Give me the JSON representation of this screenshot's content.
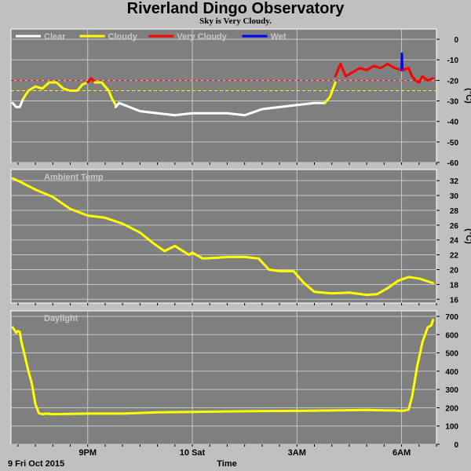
{
  "title": "Riverland Dingo Observatory",
  "subtitle": "Sky is Very Cloudy.",
  "footer": {
    "date_label": "9 Fri Oct 2015",
    "xlabel": "Time"
  },
  "x_ticks": [
    {
      "t": 21,
      "label": "9PM"
    },
    {
      "t": 24,
      "label": "10 Sat"
    },
    {
      "t": 27,
      "label": "3AM"
    },
    {
      "t": 30,
      "label": "6AM"
    }
  ],
  "chart_data": [
    {
      "type": "line",
      "name": "sky",
      "xlim": [
        18.8,
        31.0
      ],
      "ylim": [
        -60,
        5
      ],
      "yticks": [
        0,
        -10,
        -20,
        -30,
        -40,
        -50,
        -60
      ],
      "ylabel": "(°C)",
      "colors": {
        "Clear": "#ffffff",
        "Cloudy": "#ffff00",
        "Very Cloudy": "#ff0000",
        "Wet": "#0000ff"
      },
      "legend": [
        "Clear",
        "Cloudy",
        "Very Cloudy",
        "Wet"
      ],
      "thresholds": [
        {
          "y": -20,
          "color": "#ff0000"
        },
        {
          "y": -25,
          "color": "#ffff00"
        }
      ],
      "series": [
        {
          "name": "Clear",
          "x": [
            18.85,
            18.95,
            19.05,
            19.15
          ],
          "y": [
            -31,
            -33,
            -33,
            -29
          ]
        },
        {
          "name": "Cloudy",
          "x": [
            19.15,
            19.3,
            19.5,
            19.7,
            19.9,
            20.1,
            20.3,
            20.5,
            20.7,
            20.85,
            21.0
          ],
          "y": [
            -29,
            -25,
            -23,
            -24,
            -21,
            -21,
            -24,
            -25,
            -25,
            -22,
            -21
          ]
        },
        {
          "name": "Very Cloudy",
          "x": [
            21.0,
            21.1,
            21.2
          ],
          "y": [
            -21,
            -19,
            -21
          ]
        },
        {
          "name": "Cloudy",
          "x": [
            21.2,
            21.4,
            21.6,
            21.7,
            21.8
          ],
          "y": [
            -21,
            -21,
            -25,
            -29,
            -32
          ]
        },
        {
          "name": "Clear",
          "x": [
            21.8,
            21.9,
            22.2,
            22.5,
            23.0,
            23.5,
            24.0,
            24.5,
            25.0,
            25.5,
            26.0,
            26.5,
            27.0,
            27.5,
            27.8
          ],
          "y": [
            -33,
            -31,
            -33,
            -35,
            -36,
            -37,
            -36,
            -36,
            -36,
            -37,
            -34,
            -33,
            -32,
            -31,
            -31
          ]
        },
        {
          "name": "Cloudy",
          "x": [
            27.8,
            27.95,
            28.1
          ],
          "y": [
            -31,
            -28,
            -21
          ]
        },
        {
          "name": "Very Cloudy",
          "x": [
            28.1,
            28.25,
            28.4,
            28.6,
            28.8,
            29.0,
            29.2,
            29.4,
            29.6,
            29.8,
            30.0
          ],
          "y": [
            -18,
            -12,
            -18,
            -16,
            -14,
            -15,
            -13,
            -14,
            -12,
            -14,
            -15
          ]
        },
        {
          "name": "Wet",
          "x": [
            30.0,
            30.01,
            30.02,
            30.03,
            30.04
          ],
          "y": [
            -15,
            -7,
            -15,
            -14,
            -15
          ]
        },
        {
          "name": "Very Cloudy",
          "x": [
            30.05,
            30.2,
            30.3,
            30.4,
            30.5,
            30.6,
            30.75,
            30.9
          ],
          "y": [
            -15,
            -14,
            -18,
            -20,
            -21,
            -18,
            -20,
            -19
          ]
        }
      ]
    },
    {
      "type": "line",
      "name": "ambient",
      "xlim": [
        18.8,
        31.0
      ],
      "ylim": [
        15.5,
        33.5
      ],
      "yticks": [
        32,
        30,
        28,
        26,
        24,
        22,
        20,
        18,
        16
      ],
      "ylabel": "(°C)",
      "legend": [
        "Ambient Temp"
      ],
      "series": [
        {
          "name": "Ambient Temp",
          "color": "#ffff00",
          "x": [
            18.85,
            19.0,
            19.5,
            20.0,
            20.5,
            21.0,
            21.5,
            22.0,
            22.5,
            22.9,
            23.2,
            23.5,
            23.9,
            24.0,
            24.3,
            24.7,
            25.0,
            25.5,
            25.9,
            26.2,
            26.5,
            26.9,
            27.2,
            27.5,
            28.0,
            28.5,
            29.0,
            29.3,
            29.6,
            29.9,
            30.2,
            30.5,
            30.9
          ],
          "y": [
            32.3,
            32.0,
            30.8,
            29.8,
            28.2,
            27.3,
            27.0,
            26.2,
            25.0,
            23.5,
            22.5,
            23.2,
            22.0,
            22.3,
            21.5,
            21.6,
            21.7,
            21.7,
            21.5,
            20.0,
            19.8,
            19.8,
            18.2,
            17.0,
            16.8,
            16.9,
            16.6,
            16.7,
            17.5,
            18.5,
            19.0,
            18.8,
            18.2
          ]
        }
      ]
    },
    {
      "type": "line",
      "name": "daylight",
      "xlim": [
        18.8,
        31.0
      ],
      "ylim": [
        0,
        730
      ],
      "yticks": [
        700,
        600,
        500,
        400,
        300,
        200,
        100,
        0
      ],
      "legend": [
        "Daylight"
      ],
      "series": [
        {
          "name": "Daylight",
          "color": "#ffff00",
          "x": [
            18.85,
            18.95,
            19.0,
            19.05,
            19.1,
            19.2,
            19.3,
            19.4,
            19.5,
            19.6,
            19.7,
            19.8,
            20.0,
            20.5,
            21.0,
            22.0,
            23.0,
            24.0,
            25.0,
            26.0,
            27.0,
            28.0,
            29.0,
            29.5,
            29.8,
            30.0,
            30.1,
            30.2,
            30.3,
            30.45,
            30.6,
            30.75,
            30.85,
            30.9
          ],
          "y": [
            640,
            610,
            620,
            615,
            560,
            480,
            400,
            330,
            220,
            170,
            165,
            168,
            165,
            166,
            168,
            168,
            175,
            177,
            180,
            182,
            183,
            185,
            188,
            186,
            185,
            183,
            185,
            190,
            260,
            430,
            560,
            640,
            650,
            680
          ]
        }
      ]
    }
  ]
}
